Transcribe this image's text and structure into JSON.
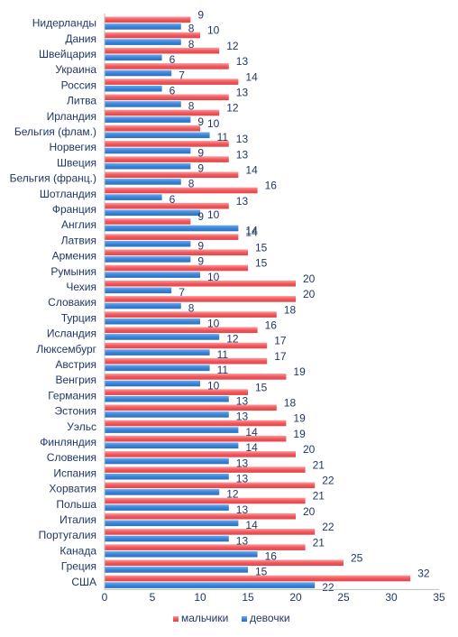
{
  "chart_data": {
    "type": "bar",
    "orientation": "horizontal",
    "categories": [
      "Нидерланды",
      "Дания",
      "Швейцария",
      "Украина",
      "Россия",
      "Литва",
      "Ирландия",
      "Бельгия (флам.)",
      "Норвегия",
      "Швеция",
      "Бельгия (франц.)",
      "Шотландия",
      "Франция",
      "Англия",
      "Латвия",
      "Армения",
      "Румыния",
      "Чехия",
      "Словакия",
      "Турция",
      "Исландия",
      "Люксембург",
      "Австрия",
      "Венгрия",
      "Германия",
      "Эстония",
      "Уэльс",
      "Финляндия",
      "Словения",
      "Испания",
      "Хорватия",
      "Польша",
      "Италия",
      "Португалия",
      "Канада",
      "Греция",
      "США"
    ],
    "series": [
      {
        "name": "мальчики",
        "color": "#f05a5e",
        "values": [
          9,
          10,
          12,
          13,
          14,
          13,
          12,
          10,
          13,
          13,
          14,
          16,
          13,
          9,
          14,
          15,
          15,
          20,
          20,
          18,
          16,
          17,
          17,
          19,
          15,
          18,
          19,
          19,
          20,
          21,
          22,
          21,
          20,
          22,
          21,
          25,
          32
        ]
      },
      {
        "name": "девочки",
        "color": "#3a85d8",
        "values": [
          8,
          8,
          6,
          7,
          6,
          8,
          9,
          11,
          9,
          9,
          8,
          6,
          10,
          14,
          9,
          9,
          10,
          7,
          8,
          10,
          12,
          11,
          11,
          10,
          13,
          13,
          14,
          14,
          13,
          13,
          12,
          13,
          14,
          13,
          16,
          15,
          22
        ]
      }
    ],
    "xlim": [
      0,
      35
    ],
    "xticks": [
      0,
      5,
      10,
      15,
      20,
      25,
      30,
      35
    ],
    "legend_position": "bottom",
    "grid": false
  }
}
